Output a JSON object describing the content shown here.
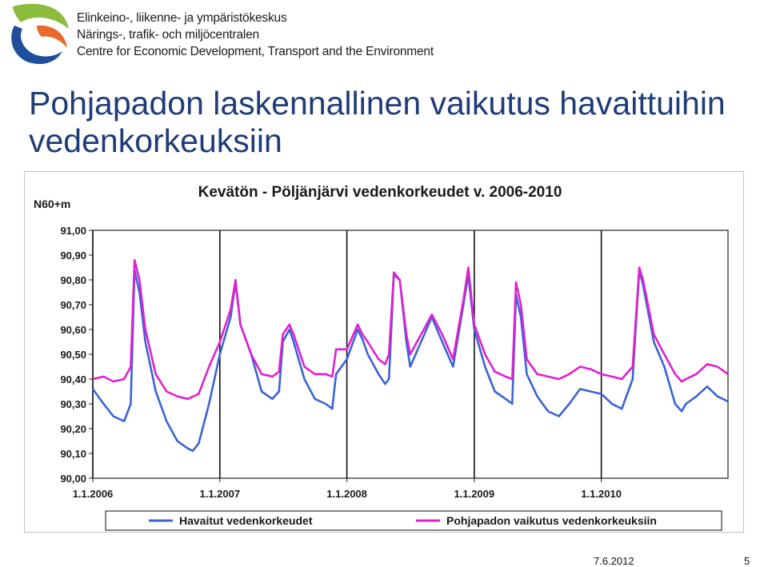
{
  "header": {
    "org_lines": [
      "Elinkeino-, liikenne- ja ympäristökeskus",
      "Närings-, trafik- och miljöcentralen",
      "Centre for Economic Development, Transport and the Environment"
    ],
    "logo_colors": {
      "green": "#8dbb3c",
      "orange": "#e8692b",
      "blue": "#1f4f9b"
    }
  },
  "slide": {
    "title_line1": "Pohjapadon laskennallinen vaikutus havaittuihin",
    "title_line2": "vedenkorkeuksiin",
    "date": "7.6.2012",
    "page": "5"
  },
  "chart_data": {
    "type": "line",
    "title": "Kevätön - Pöljänjärvi vedenkorkeudet v. 2006-2010",
    "ylabel": "N60+m",
    "xlabel": "",
    "ylim": [
      90.0,
      91.0
    ],
    "y_ticks": [
      "90,00",
      "90,10",
      "90,20",
      "90,30",
      "90,40",
      "90,50",
      "90,60",
      "90,70",
      "90,80",
      "90,90",
      "91,00"
    ],
    "x_range": [
      "2006-01-01",
      "2010-12-31"
    ],
    "x_ticks": [
      "1.1.2006",
      "1.1.2007",
      "1.1.2008",
      "1.1.2009",
      "1.1.2010"
    ],
    "legend_position": "bottom",
    "grid": "vertical lines at year boundaries",
    "series": [
      {
        "name": "Havaitut vedenkorkeudet",
        "color": "#3a63d6",
        "points": [
          [
            "2006-01-01",
            90.36
          ],
          [
            "2006-02-01",
            90.3
          ],
          [
            "2006-03-01",
            90.25
          ],
          [
            "2006-04-01",
            90.23
          ],
          [
            "2006-04-20",
            90.3
          ],
          [
            "2006-05-01",
            90.84
          ],
          [
            "2006-05-15",
            90.75
          ],
          [
            "2006-06-01",
            90.55
          ],
          [
            "2006-07-01",
            90.35
          ],
          [
            "2006-08-01",
            90.23
          ],
          [
            "2006-09-01",
            90.15
          ],
          [
            "2006-10-01",
            90.12
          ],
          [
            "2006-10-15",
            90.11
          ],
          [
            "2006-11-01",
            90.14
          ],
          [
            "2006-12-01",
            90.3
          ],
          [
            "2007-01-01",
            90.5
          ],
          [
            "2007-02-01",
            90.65
          ],
          [
            "2007-02-15",
            90.79
          ],
          [
            "2007-03-01",
            90.62
          ],
          [
            "2007-04-01",
            90.5
          ],
          [
            "2007-05-01",
            90.35
          ],
          [
            "2007-06-01",
            90.32
          ],
          [
            "2007-06-20",
            90.35
          ],
          [
            "2007-07-01",
            90.55
          ],
          [
            "2007-07-20",
            90.6
          ],
          [
            "2007-08-01",
            90.55
          ],
          [
            "2007-09-01",
            90.4
          ],
          [
            "2007-10-01",
            90.32
          ],
          [
            "2007-11-01",
            90.3
          ],
          [
            "2007-11-20",
            90.28
          ],
          [
            "2007-12-01",
            90.42
          ],
          [
            "2008-01-01",
            90.48
          ],
          [
            "2008-02-01",
            90.6
          ],
          [
            "2008-02-15",
            90.56
          ],
          [
            "2008-03-01",
            90.5
          ],
          [
            "2008-04-01",
            90.42
          ],
          [
            "2008-04-20",
            90.38
          ],
          [
            "2008-05-01",
            90.4
          ],
          [
            "2008-05-15",
            90.82
          ],
          [
            "2008-06-01",
            90.8
          ],
          [
            "2008-06-20",
            90.55
          ],
          [
            "2008-07-01",
            90.45
          ],
          [
            "2008-08-01",
            90.55
          ],
          [
            "2008-09-01",
            90.65
          ],
          [
            "2008-10-01",
            90.55
          ],
          [
            "2008-11-01",
            90.45
          ],
          [
            "2008-12-01",
            90.7
          ],
          [
            "2008-12-15",
            90.82
          ],
          [
            "2009-01-01",
            90.6
          ],
          [
            "2009-02-01",
            90.45
          ],
          [
            "2009-03-01",
            90.35
          ],
          [
            "2009-04-01",
            90.32
          ],
          [
            "2009-04-20",
            90.3
          ],
          [
            "2009-05-01",
            90.74
          ],
          [
            "2009-05-15",
            90.65
          ],
          [
            "2009-06-01",
            90.42
          ],
          [
            "2009-07-01",
            90.33
          ],
          [
            "2009-08-01",
            90.27
          ],
          [
            "2009-09-01",
            90.25
          ],
          [
            "2009-10-01",
            90.3
          ],
          [
            "2009-11-01",
            90.36
          ],
          [
            "2009-12-01",
            90.35
          ],
          [
            "2010-01-01",
            90.34
          ],
          [
            "2010-02-01",
            90.3
          ],
          [
            "2010-03-01",
            90.28
          ],
          [
            "2010-04-01",
            90.4
          ],
          [
            "2010-04-20",
            90.84
          ],
          [
            "2010-05-01",
            90.78
          ],
          [
            "2010-06-01",
            90.55
          ],
          [
            "2010-07-01",
            90.45
          ],
          [
            "2010-08-01",
            90.3
          ],
          [
            "2010-08-20",
            90.27
          ],
          [
            "2010-09-01",
            90.3
          ],
          [
            "2010-10-01",
            90.33
          ],
          [
            "2010-11-01",
            90.37
          ],
          [
            "2010-12-01",
            90.33
          ],
          [
            "2010-12-31",
            90.31
          ]
        ]
      },
      {
        "name": "Pohjapadon vaikutus vedenkorkeuksiin",
        "color": "#e020d0",
        "points": [
          [
            "2006-01-01",
            90.4
          ],
          [
            "2006-02-01",
            90.41
          ],
          [
            "2006-03-01",
            90.39
          ],
          [
            "2006-04-01",
            90.4
          ],
          [
            "2006-04-20",
            90.45
          ],
          [
            "2006-05-01",
            90.88
          ],
          [
            "2006-05-15",
            90.8
          ],
          [
            "2006-06-01",
            90.6
          ],
          [
            "2006-07-01",
            90.42
          ],
          [
            "2006-08-01",
            90.35
          ],
          [
            "2006-09-01",
            90.33
          ],
          [
            "2006-10-01",
            90.32
          ],
          [
            "2006-11-01",
            90.34
          ],
          [
            "2006-12-01",
            90.45
          ],
          [
            "2007-01-01",
            90.55
          ],
          [
            "2007-02-01",
            90.68
          ],
          [
            "2007-02-15",
            90.8
          ],
          [
            "2007-03-01",
            90.62
          ],
          [
            "2007-04-01",
            90.5
          ],
          [
            "2007-05-01",
            90.42
          ],
          [
            "2007-06-01",
            90.41
          ],
          [
            "2007-06-20",
            90.43
          ],
          [
            "2007-07-01",
            90.58
          ],
          [
            "2007-07-20",
            90.62
          ],
          [
            "2007-08-01",
            90.58
          ],
          [
            "2007-09-01",
            90.45
          ],
          [
            "2007-10-01",
            90.42
          ],
          [
            "2007-11-01",
            90.42
          ],
          [
            "2007-11-20",
            90.41
          ],
          [
            "2007-12-01",
            90.52
          ],
          [
            "2008-01-01",
            90.52
          ],
          [
            "2008-02-01",
            90.62
          ],
          [
            "2008-02-15",
            90.58
          ],
          [
            "2008-03-01",
            90.55
          ],
          [
            "2008-04-01",
            90.48
          ],
          [
            "2008-04-20",
            90.46
          ],
          [
            "2008-05-01",
            90.5
          ],
          [
            "2008-05-15",
            90.83
          ],
          [
            "2008-06-01",
            90.8
          ],
          [
            "2008-06-20",
            90.58
          ],
          [
            "2008-07-01",
            90.5
          ],
          [
            "2008-08-01",
            90.58
          ],
          [
            "2008-09-01",
            90.66
          ],
          [
            "2008-10-01",
            90.58
          ],
          [
            "2008-11-01",
            90.48
          ],
          [
            "2008-12-01",
            90.72
          ],
          [
            "2008-12-15",
            90.85
          ],
          [
            "2009-01-01",
            90.62
          ],
          [
            "2009-02-01",
            90.5
          ],
          [
            "2009-03-01",
            90.43
          ],
          [
            "2009-04-01",
            90.41
          ],
          [
            "2009-04-20",
            90.4
          ],
          [
            "2009-05-01",
            90.79
          ],
          [
            "2009-05-15",
            90.7
          ],
          [
            "2009-06-01",
            90.48
          ],
          [
            "2009-07-01",
            90.42
          ],
          [
            "2009-08-01",
            90.41
          ],
          [
            "2009-09-01",
            90.4
          ],
          [
            "2009-10-01",
            90.42
          ],
          [
            "2009-11-01",
            90.45
          ],
          [
            "2009-12-01",
            90.44
          ],
          [
            "2010-01-01",
            90.42
          ],
          [
            "2010-02-01",
            90.41
          ],
          [
            "2010-03-01",
            90.4
          ],
          [
            "2010-04-01",
            90.45
          ],
          [
            "2010-04-20",
            90.85
          ],
          [
            "2010-05-01",
            90.8
          ],
          [
            "2010-06-01",
            90.58
          ],
          [
            "2010-07-01",
            90.5
          ],
          [
            "2010-08-01",
            90.42
          ],
          [
            "2010-08-20",
            90.39
          ],
          [
            "2010-09-01",
            90.4
          ],
          [
            "2010-10-01",
            90.42
          ],
          [
            "2010-11-01",
            90.46
          ],
          [
            "2010-12-01",
            90.45
          ],
          [
            "2010-12-31",
            90.42
          ]
        ]
      }
    ]
  }
}
